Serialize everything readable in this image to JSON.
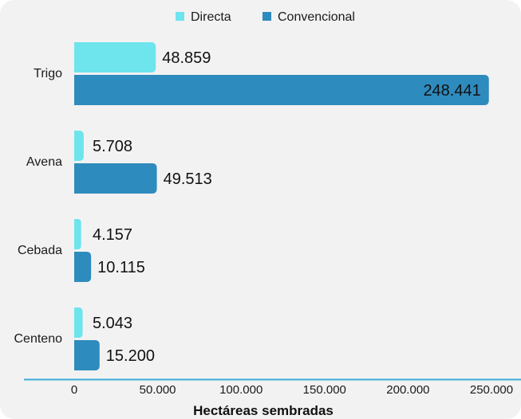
{
  "chart_data": {
    "type": "bar",
    "orientation": "horizontal",
    "categories": [
      "Trigo",
      "Avena",
      "Cebada",
      "Centeno"
    ],
    "series": [
      {
        "name": "Directa",
        "color": "#6ee4ec",
        "values": [
          48859,
          5708,
          4157,
          5043
        ],
        "labels": [
          "48.859",
          "5.708",
          "4.157",
          "5.043"
        ]
      },
      {
        "name": "Convencional",
        "color": "#2e8bbd",
        "values": [
          248441,
          49513,
          10115,
          15200
        ],
        "labels": [
          "248.441",
          "49.513",
          "10.115",
          "15.200"
        ]
      }
    ],
    "xlabel": "Hectáreas sembradas",
    "xlim": [
      0,
      250000
    ],
    "xticks": [
      0,
      50000,
      100000,
      150000,
      200000,
      250000
    ],
    "xtick_labels": [
      "0",
      "50.000",
      "100.000",
      "150.000",
      "200.000",
      "250.000"
    ],
    "legend_position": "top-center",
    "grid": false
  }
}
